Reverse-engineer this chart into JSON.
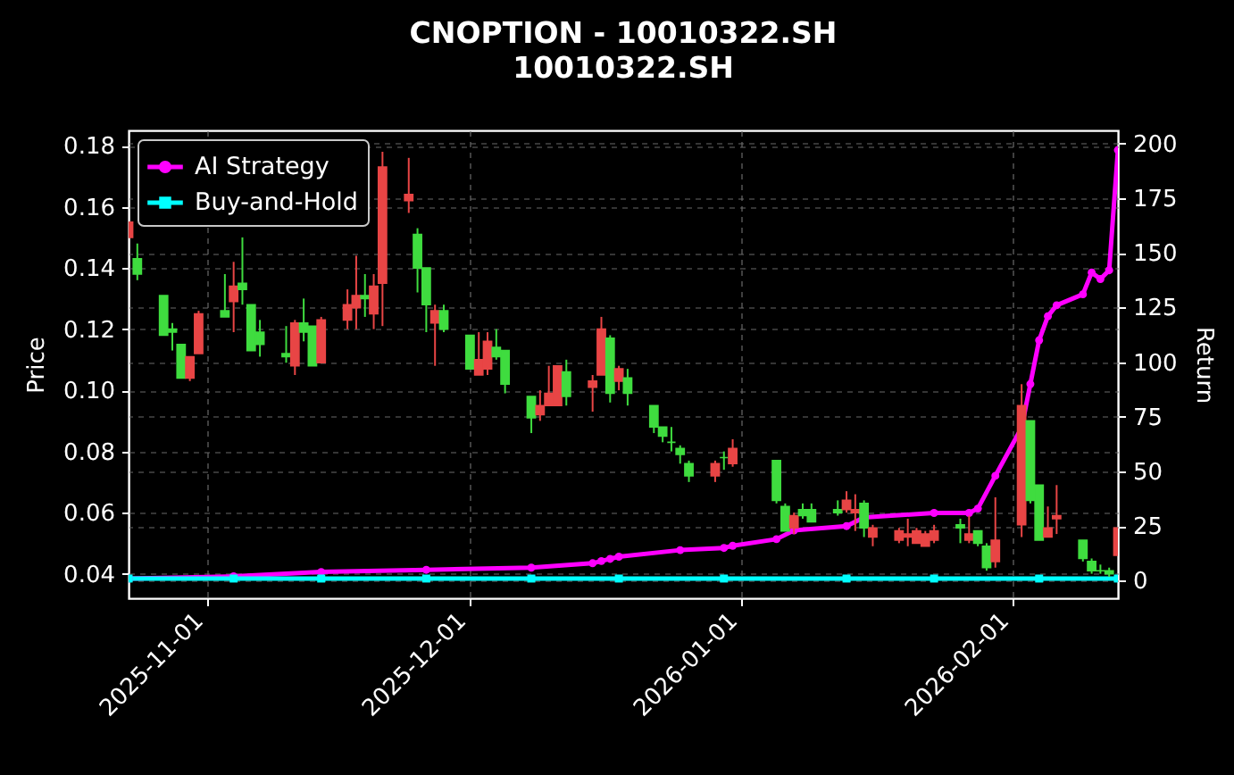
{
  "chart_data": {
    "type": "candlestick",
    "title": "CNOPTION - 10010322.SH",
    "subtitle": "10010322.SH",
    "ylabel": "Price",
    "y2label": "Return",
    "x": [
      "2025-10-23",
      "2025-10-24",
      "2025-10-27",
      "2025-10-28",
      "2025-10-29",
      "2025-10-30",
      "2025-10-31",
      "2025-11-03",
      "2025-11-04",
      "2025-11-05",
      "2025-11-06",
      "2025-11-07",
      "2025-11-10",
      "2025-11-11",
      "2025-11-12",
      "2025-11-13",
      "2025-11-14",
      "2025-11-17",
      "2025-11-18",
      "2025-11-19",
      "2025-11-20",
      "2025-11-21",
      "2025-11-24",
      "2025-11-25",
      "2025-11-26",
      "2025-11-27",
      "2025-11-28",
      "2025-12-01",
      "2025-12-02",
      "2025-12-03",
      "2025-12-04",
      "2025-12-05",
      "2025-12-08",
      "2025-12-09",
      "2025-12-10",
      "2025-12-11",
      "2025-12-12",
      "2025-12-15",
      "2025-12-16",
      "2025-12-17",
      "2025-12-18",
      "2025-12-19",
      "2025-12-22",
      "2025-12-23",
      "2025-12-24",
      "2025-12-25",
      "2025-12-26",
      "2025-12-29",
      "2025-12-30",
      "2025-12-31",
      "2026-01-05",
      "2026-01-06",
      "2026-01-07",
      "2026-01-08",
      "2026-01-09",
      "2026-01-12",
      "2026-01-13",
      "2026-01-14",
      "2026-01-15",
      "2026-01-16",
      "2026-01-19",
      "2026-01-20",
      "2026-01-21",
      "2026-01-22",
      "2026-01-23",
      "2026-01-26",
      "2026-01-27",
      "2026-01-28",
      "2026-01-29",
      "2026-01-30",
      "2026-02-02",
      "2026-02-03",
      "2026-02-04",
      "2026-02-05",
      "2026-02-06",
      "2026-02-09",
      "2026-02-10",
      "2026-02-11",
      "2026-02-12",
      "2026-02-13"
    ],
    "ohlc": [
      [
        0.15,
        0.155,
        0.15,
        0.155
      ],
      [
        0.143,
        0.148,
        0.136,
        0.138
      ],
      [
        0.131,
        0.131,
        0.118,
        0.118
      ],
      [
        0.12,
        0.122,
        0.113,
        0.119
      ],
      [
        0.115,
        0.115,
        0.104,
        0.104
      ],
      [
        0.104,
        0.111,
        0.103,
        0.111
      ],
      [
        0.112,
        0.126,
        0.112,
        0.125
      ],
      [
        0.126,
        0.138,
        0.124,
        0.124
      ],
      [
        0.129,
        0.142,
        0.119,
        0.134
      ],
      [
        0.135,
        0.15,
        0.128,
        0.133
      ],
      [
        0.128,
        0.128,
        0.113,
        0.113
      ],
      [
        0.119,
        0.123,
        0.111,
        0.115
      ],
      [
        0.112,
        0.121,
        0.109,
        0.111
      ],
      [
        0.108,
        0.123,
        0.105,
        0.122
      ],
      [
        0.122,
        0.13,
        0.116,
        0.119
      ],
      [
        0.121,
        0.121,
        0.108,
        0.108
      ],
      [
        0.109,
        0.124,
        0.109,
        0.123
      ],
      [
        0.123,
        0.133,
        0.12,
        0.128
      ],
      [
        0.127,
        0.144,
        0.12,
        0.131
      ],
      [
        0.131,
        0.138,
        0.124,
        0.13
      ],
      [
        0.125,
        0.138,
        0.12,
        0.134
      ],
      [
        0.135,
        0.178,
        0.121,
        0.173
      ],
      [
        0.162,
        0.176,
        0.158,
        0.164
      ],
      [
        0.151,
        0.153,
        0.132,
        0.14
      ],
      [
        0.14,
        0.14,
        0.119,
        0.128
      ],
      [
        0.122,
        0.128,
        0.108,
        0.126
      ],
      [
        0.126,
        0.128,
        0.119,
        0.12
      ],
      [
        0.118,
        0.118,
        0.107,
        0.107
      ],
      [
        0.105,
        0.119,
        0.105,
        0.11
      ],
      [
        0.107,
        0.119,
        0.105,
        0.116
      ],
      [
        0.114,
        0.12,
        0.11,
        0.111
      ],
      [
        0.113,
        0.113,
        0.099,
        0.102
      ],
      [
        0.098,
        0.098,
        0.086,
        0.091
      ],
      [
        0.092,
        0.1,
        0.09,
        0.095
      ],
      [
        0.095,
        0.108,
        0.095,
        0.099
      ],
      [
        0.095,
        0.108,
        0.095,
        0.108
      ],
      [
        0.106,
        0.11,
        0.095,
        0.098
      ],
      [
        0.101,
        0.105,
        0.093,
        0.103
      ],
      [
        0.105,
        0.124,
        0.105,
        0.12
      ],
      [
        0.117,
        0.118,
        0.096,
        0.099
      ],
      [
        0.103,
        0.108,
        0.1,
        0.107
      ],
      [
        0.104,
        0.107,
        0.095,
        0.099
      ],
      [
        0.095,
        0.095,
        0.086,
        0.088
      ],
      [
        0.088,
        0.088,
        0.083,
        0.085
      ],
      [
        0.083,
        0.088,
        0.08,
        0.083
      ],
      [
        0.081,
        0.082,
        0.076,
        0.079
      ],
      [
        0.076,
        0.077,
        0.07,
        0.072
      ],
      [
        0.072,
        0.077,
        0.07,
        0.076
      ],
      [
        0.078,
        0.08,
        0.074,
        0.078
      ],
      [
        0.076,
        0.084,
        0.075,
        0.081
      ],
      [
        0.077,
        0.077,
        0.063,
        0.064
      ],
      [
        0.062,
        0.063,
        0.054,
        0.054
      ],
      [
        0.055,
        0.06,
        0.053,
        0.059
      ],
      [
        0.061,
        0.063,
        0.058,
        0.059
      ],
      [
        0.061,
        0.063,
        0.057,
        0.057
      ],
      [
        0.061,
        0.064,
        0.059,
        0.06
      ],
      [
        0.061,
        0.067,
        0.06,
        0.064
      ],
      [
        0.06,
        0.066,
        0.054,
        0.061
      ],
      [
        0.063,
        0.064,
        0.052,
        0.055
      ],
      [
        0.052,
        0.056,
        0.049,
        0.055
      ],
      [
        0.051,
        0.055,
        0.05,
        0.054
      ],
      [
        0.052,
        0.058,
        0.049,
        0.053
      ],
      [
        0.05,
        0.055,
        0.05,
        0.054
      ],
      [
        0.049,
        0.054,
        0.049,
        0.053
      ],
      [
        0.051,
        0.056,
        0.05,
        0.054
      ],
      [
        0.056,
        0.058,
        0.05,
        0.055
      ],
      [
        0.051,
        0.059,
        0.05,
        0.053
      ],
      [
        0.054,
        0.054,
        0.049,
        0.05
      ],
      [
        0.049,
        0.05,
        0.041,
        0.042
      ],
      [
        0.044,
        0.065,
        0.042,
        0.051
      ],
      [
        0.056,
        0.102,
        0.052,
        0.095
      ],
      [
        0.09,
        0.09,
        0.063,
        0.064
      ],
      [
        0.069,
        0.069,
        0.051,
        0.051
      ],
      [
        0.052,
        0.062,
        0.052,
        0.055
      ],
      [
        0.058,
        0.069,
        0.053,
        0.059
      ],
      [
        0.051,
        0.051,
        0.044,
        0.045
      ],
      [
        0.044,
        0.045,
        0.04,
        0.041
      ],
      [
        0.041,
        0.043,
        0.04,
        0.041
      ],
      [
        0.041,
        0.042,
        0.039,
        0.04
      ],
      [
        0.046,
        0.055,
        0.046,
        0.055
      ]
    ],
    "colors": [
      "#e84545",
      "#3fdc3f",
      "#3fdc3f",
      "#3fdc3f",
      "#3fdc3f",
      "#e84545",
      "#e84545",
      "#3fdc3f",
      "#e84545",
      "#3fdc3f",
      "#3fdc3f",
      "#3fdc3f",
      "#3fdc3f",
      "#e84545",
      "#3fdc3f",
      "#3fdc3f",
      "#e84545",
      "#e84545",
      "#e84545",
      "#3fdc3f",
      "#e84545",
      "#e84545",
      "#e84545",
      "#3fdc3f",
      "#3fdc3f",
      "#e84545",
      "#3fdc3f",
      "#3fdc3f",
      "#e84545",
      "#e84545",
      "#3fdc3f",
      "#3fdc3f",
      "#3fdc3f",
      "#e84545",
      "#e84545",
      "#e84545",
      "#3fdc3f",
      "#e84545",
      "#e84545",
      "#3fdc3f",
      "#e84545",
      "#3fdc3f",
      "#3fdc3f",
      "#3fdc3f",
      "#3fdc3f",
      "#3fdc3f",
      "#3fdc3f",
      "#e84545",
      "#3fdc3f",
      "#e84545",
      "#3fdc3f",
      "#3fdc3f",
      "#e84545",
      "#3fdc3f",
      "#3fdc3f",
      "#3fdc3f",
      "#e84545",
      "#e84545",
      "#3fdc3f",
      "#e84545",
      "#e84545",
      "#e84545",
      "#e84545",
      "#e84545",
      "#e84545",
      "#3fdc3f",
      "#e84545",
      "#3fdc3f",
      "#3fdc3f",
      "#e84545",
      "#e84545",
      "#3fdc3f",
      "#3fdc3f",
      "#e84545",
      "#e84545",
      "#3fdc3f",
      "#3fdc3f",
      "#3fdc3f",
      "#3fdc3f",
      "#e84545"
    ],
    "series": [
      {
        "type": "line",
        "name": "AI Strategy",
        "color": "#ff00ff",
        "axis": "y2",
        "marker": "circle",
        "x": [
          "2025-10-23",
          "2025-11-04",
          "2025-11-14",
          "2025-11-26",
          "2025-12-08",
          "2025-12-15",
          "2025-12-16",
          "2025-12-17",
          "2025-12-18",
          "2025-12-25",
          "2025-12-30",
          "2025-12-31",
          "2026-01-05",
          "2026-01-07",
          "2026-01-13",
          "2026-01-15",
          "2026-01-23",
          "2026-01-27",
          "2026-01-28",
          "2026-01-30",
          "2026-02-02",
          "2026-02-03",
          "2026-02-04",
          "2026-02-05",
          "2026-02-06",
          "2026-02-09",
          "2026-02-10",
          "2026-02-11",
          "2026-02-12",
          "2026-02-13"
        ],
        "values": [
          1,
          2,
          4,
          5,
          6,
          8,
          9,
          10,
          11,
          14,
          15,
          16,
          19,
          23,
          25,
          29,
          31,
          31,
          33,
          48,
          70,
          90,
          110,
          121,
          126,
          131,
          141,
          138,
          142,
          197
        ]
      },
      {
        "type": "line",
        "name": "Buy-and-Hold",
        "color": "#00ffff",
        "axis": "y2",
        "marker": "square",
        "x": [
          "2025-10-23",
          "2025-11-04",
          "2025-11-14",
          "2025-11-26",
          "2025-12-08",
          "2025-12-18",
          "2025-12-30",
          "2026-01-13",
          "2026-01-23",
          "2026-02-04",
          "2026-02-13"
        ],
        "values": [
          1,
          1,
          1,
          1,
          1,
          1,
          1,
          1,
          1,
          1,
          1
        ]
      }
    ],
    "xlim": [
      "2025-10-23",
      "2026-02-13"
    ],
    "xticks": [
      "2025-11-01",
      "2025-12-01",
      "2026-01-01",
      "2026-02-01"
    ],
    "ylim": [
      0.032,
      0.185
    ],
    "yticks": [
      0.04,
      0.06,
      0.08,
      {
        "value": 0.1,
        "label": "0.10"
      },
      0.12,
      0.14,
      0.16,
      0.18
    ],
    "y2lim": [
      -8,
      206
    ],
    "y2ticks": [
      0,
      25,
      50,
      75,
      100,
      125,
      150,
      175,
      200
    ],
    "grid": true,
    "legend": "top left"
  }
}
